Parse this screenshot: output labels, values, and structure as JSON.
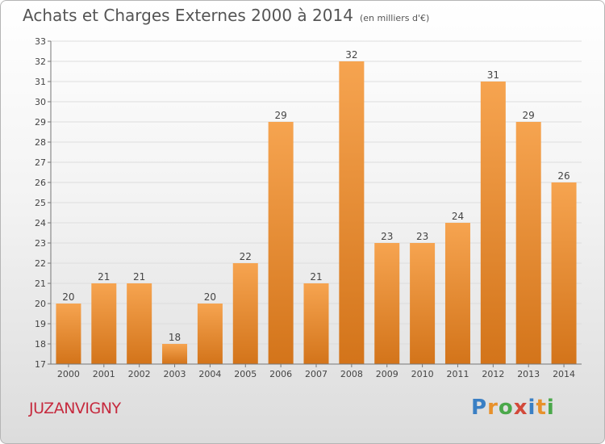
{
  "header": {
    "title": "Achats et Charges Externes 2000 à 2014",
    "unit": "(en milliers d'€)"
  },
  "commune": "JUZANVIGNY",
  "logo": {
    "text": "Proxiti",
    "letter_colors": [
      "#3a7fc4",
      "#e8912b",
      "#4aa84a",
      "#d2493a",
      "#3a7fc4",
      "#e8912b",
      "#4aa84a"
    ]
  },
  "colors": {
    "bar_top": "#f6a450",
    "bar_bottom": "#d3741a",
    "grid": "#dddddd",
    "axis": "#777777",
    "commune": "#c62a3e"
  },
  "chart_data": {
    "type": "bar",
    "title": "Achats et Charges Externes 2000 à 2014",
    "subtitle": "(en milliers d'€)",
    "xlabel": "",
    "ylabel": "",
    "categories": [
      "2000",
      "2001",
      "2002",
      "2003",
      "2004",
      "2005",
      "2006",
      "2007",
      "2008",
      "2009",
      "2010",
      "2011",
      "2012",
      "2013",
      "2014"
    ],
    "values": [
      20,
      21,
      21,
      18,
      20,
      22,
      29,
      21,
      32,
      23,
      23,
      24,
      31,
      29,
      26
    ],
    "ylim": [
      17,
      33
    ],
    "yticks": [
      17,
      18,
      19,
      20,
      21,
      22,
      23,
      24,
      25,
      26,
      27,
      28,
      29,
      30,
      31,
      32,
      33
    ],
    "grid": true,
    "legend": "none"
  }
}
